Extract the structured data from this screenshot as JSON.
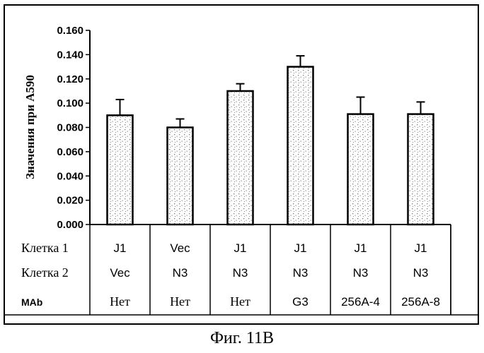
{
  "chart_data": {
    "type": "bar",
    "ylabel": "Значения при A590",
    "ylim": [
      0,
      0.16
    ],
    "yticks": [
      "0.000",
      "0.020",
      "0.040",
      "0.060",
      "0.080",
      "0.100",
      "0.120",
      "0.140",
      "0.160"
    ],
    "values": [
      0.09,
      0.08,
      0.11,
      0.13,
      0.091,
      0.091
    ],
    "errors": [
      0.013,
      0.007,
      0.006,
      0.009,
      0.014,
      0.01
    ],
    "table_rows": [
      {
        "label": "Клетка 1",
        "cells": [
          "J1",
          "Vec",
          "J1",
          "J1",
          "J1",
          "J1"
        ]
      },
      {
        "label": "Клетка 2",
        "cells": [
          "Vec",
          "N3",
          "N3",
          "N3",
          "N3",
          "N3"
        ]
      },
      {
        "label": "MAb",
        "cells": [
          "Нет",
          "Нет",
          "Нет",
          "G3",
          "256A-4",
          "256A-8"
        ]
      }
    ],
    "grid": false,
    "legend": "none"
  },
  "caption": "Фиг. 11B"
}
